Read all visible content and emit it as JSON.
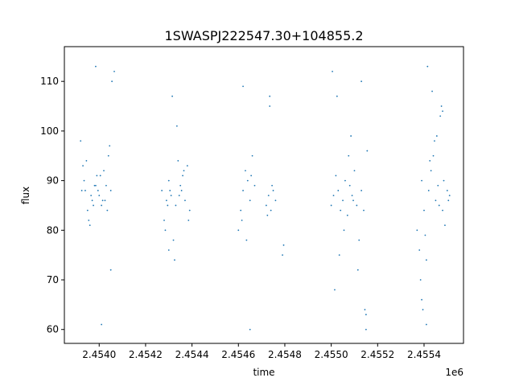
{
  "chart_data": {
    "type": "scatter",
    "title": "1SWASPJ222547.30+104855.2",
    "xlabel": "time",
    "ylabel": "flux",
    "x_offset_label": "1e6",
    "x_tick_labels": [
      "2.4540",
      "2.4542",
      "2.4544",
      "2.4546",
      "2.4548",
      "2.4550",
      "2.4552",
      "2.4554"
    ],
    "y_tick_labels": [
      "60",
      "70",
      "80",
      "90",
      "100",
      "110"
    ],
    "xlim": [
      2453850,
      2455570
    ],
    "ylim": [
      57.2,
      117.0
    ],
    "x_ticks": [
      2454000,
      2454200,
      2454400,
      2454600,
      2454800,
      2455000,
      2455200,
      2455400
    ],
    "y_ticks": [
      60,
      70,
      80,
      90,
      100,
      110
    ],
    "grid": false,
    "marker_color": "#1f77b4",
    "series": [
      {
        "x": [
          2453920,
          2453930,
          2453940,
          2453950,
          2453960,
          2453970,
          2453980,
          2453990,
          2454000,
          2454010,
          2454020,
          2454030,
          2454040,
          2454050,
          2453935,
          2453955,
          2453975,
          2453995,
          2454015,
          2454035,
          2453945,
          2453965,
          2453985,
          2454005,
          2454025,
          2454045,
          2453925,
          2453985,
          2454055,
          2454065,
          2454050,
          2454010
        ],
        "y": [
          98,
          93,
          88,
          84,
          81,
          86,
          89,
          91,
          87,
          85,
          92,
          89,
          95,
          88,
          90,
          82,
          85,
          88,
          86,
          84,
          94,
          87,
          89,
          91,
          86,
          97,
          88,
          113,
          110,
          112,
          72,
          61
        ]
      },
      {
        "x": [
          2454270,
          2454280,
          2454290,
          2454300,
          2454310,
          2454320,
          2454330,
          2454340,
          2454350,
          2454360,
          2454370,
          2454380,
          2454390,
          2454285,
          2454305,
          2454325,
          2454345,
          2454365,
          2454385,
          2454295,
          2454335,
          2454355,
          2454315,
          2454300
        ],
        "y": [
          88,
          82,
          86,
          90,
          87,
          78,
          85,
          94,
          89,
          91,
          86,
          93,
          84,
          80,
          88,
          74,
          87,
          92,
          82,
          85,
          101,
          88,
          107,
          76
        ]
      },
      {
        "x": [
          2454600,
          2454610,
          2454620,
          2454630,
          2454640,
          2454650,
          2454660,
          2454670,
          2454720,
          2454730,
          2454740,
          2454750,
          2454760,
          2454615,
          2454635,
          2454655,
          2454725,
          2454745,
          2454735,
          2454735,
          2454790,
          2454795,
          2454620,
          2454650
        ],
        "y": [
          80,
          84,
          88,
          92,
          90,
          86,
          95,
          89,
          85,
          87,
          84,
          88,
          86,
          82,
          78,
          91,
          83,
          89,
          105,
          107,
          75,
          77,
          109,
          60
        ]
      },
      {
        "x": [
          2455000,
          2455010,
          2455020,
          2455030,
          2455040,
          2455050,
          2455060,
          2455070,
          2455080,
          2455090,
          2455100,
          2455110,
          2455120,
          2455130,
          2455015,
          2455035,
          2455055,
          2455075,
          2455095,
          2455115,
          2455140,
          2455145,
          2455150,
          2455155,
          2455025,
          2455005,
          2455085,
          2455130,
          2455150
        ],
        "y": [
          85,
          87,
          91,
          88,
          84,
          86,
          90,
          83,
          89,
          87,
          92,
          85,
          78,
          88,
          68,
          75,
          80,
          95,
          86,
          72,
          84,
          64,
          63,
          96,
          107,
          112,
          99,
          110,
          60
        ]
      },
      {
        "x": [
          2455370,
          2455380,
          2455390,
          2455400,
          2455410,
          2455420,
          2455430,
          2455440,
          2455450,
          2455460,
          2455470,
          2455480,
          2455490,
          2455500,
          2455510,
          2455385,
          2455405,
          2455425,
          2455445,
          2455465,
          2455485,
          2455505,
          2455395,
          2455415,
          2455435,
          2455455,
          2455475,
          2455480,
          2455410,
          2455390
        ],
        "y": [
          80,
          76,
          90,
          84,
          74,
          88,
          92,
          95,
          86,
          89,
          103,
          84,
          81,
          88,
          87,
          70,
          79,
          94,
          98,
          85,
          90,
          86,
          64,
          113,
          108,
          99,
          105,
          104,
          61,
          66
        ]
      }
    ]
  }
}
